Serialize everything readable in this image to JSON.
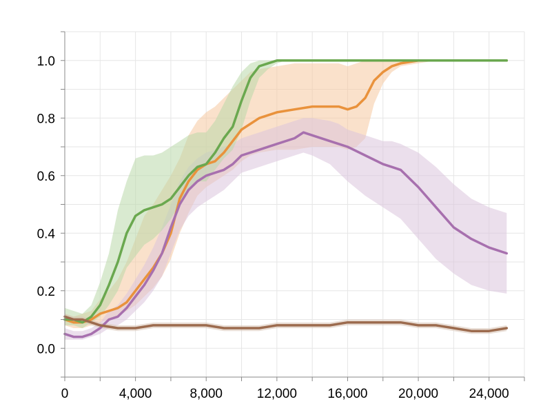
{
  "chart_data": {
    "type": "line",
    "title": "",
    "xlabel": "",
    "ylabel": "",
    "xlim": [
      0,
      26000
    ],
    "ylim": [
      -0.1,
      1.1
    ],
    "grid": true,
    "x_ticks": [
      0,
      4000,
      8000,
      12000,
      16000,
      20000,
      24000
    ],
    "x_tick_labels": [
      "0",
      "4,000",
      "8,000",
      "12,000",
      "16,000",
      "20,000",
      "24,000"
    ],
    "y_ticks": [
      0.0,
      0.2,
      0.4,
      0.6,
      0.8,
      1.0
    ],
    "y_tick_labels": [
      "0.0",
      "0.2",
      "0.4",
      "0.6",
      "0.8",
      "1.0"
    ],
    "series": [
      {
        "color": "#e9923c",
        "band_color": "#f5c9a0",
        "x": [
          0,
          500,
          1000,
          1500,
          2000,
          2500,
          3000,
          3500,
          4000,
          4500,
          5000,
          5500,
          6000,
          6500,
          7000,
          7500,
          8000,
          8500,
          9000,
          9500,
          10000,
          10500,
          11000,
          12000,
          13000,
          14000,
          15000,
          15500,
          16000,
          16500,
          17000,
          17500,
          18000,
          18500,
          19000,
          20000,
          21000,
          22000,
          23000,
          24000,
          25000
        ],
        "y": [
          0.1,
          0.09,
          0.09,
          0.1,
          0.12,
          0.13,
          0.14,
          0.16,
          0.2,
          0.24,
          0.28,
          0.33,
          0.4,
          0.52,
          0.58,
          0.62,
          0.64,
          0.65,
          0.68,
          0.72,
          0.76,
          0.78,
          0.8,
          0.82,
          0.83,
          0.84,
          0.84,
          0.84,
          0.83,
          0.84,
          0.87,
          0.93,
          0.96,
          0.98,
          0.99,
          1.0,
          1.0,
          1.0,
          1.0,
          1.0,
          1.0
        ],
        "lower": [
          0.08,
          0.07,
          0.07,
          0.08,
          0.09,
          0.1,
          0.11,
          0.13,
          0.15,
          0.18,
          0.21,
          0.25,
          0.31,
          0.4,
          0.47,
          0.53,
          0.56,
          0.58,
          0.6,
          0.62,
          0.65,
          0.67,
          0.68,
          0.69,
          0.69,
          0.7,
          0.7,
          0.7,
          0.69,
          0.7,
          0.73,
          0.85,
          0.92,
          0.96,
          0.98,
          0.99,
          1.0,
          1.0,
          1.0,
          1.0,
          1.0
        ],
        "upper": [
          0.12,
          0.11,
          0.12,
          0.13,
          0.17,
          0.2,
          0.24,
          0.3,
          0.38,
          0.46,
          0.5,
          0.55,
          0.6,
          0.66,
          0.74,
          0.79,
          0.82,
          0.84,
          0.87,
          0.9,
          0.93,
          0.96,
          0.97,
          0.98,
          0.99,
          0.99,
          0.99,
          0.99,
          0.98,
          0.99,
          1.0,
          1.0,
          1.0,
          1.0,
          1.0,
          1.0,
          1.0,
          1.0,
          1.0,
          1.0,
          1.0
        ]
      },
      {
        "color": "#6aa84f",
        "band_color": "#b9d8a9",
        "x": [
          0,
          500,
          1000,
          1500,
          2000,
          2500,
          3000,
          3500,
          4000,
          4500,
          5000,
          5500,
          6000,
          6500,
          7000,
          7500,
          8000,
          8500,
          9000,
          9500,
          10000,
          10500,
          11000,
          11500,
          12000,
          12500,
          13000,
          14000,
          16000,
          20000,
          25000
        ],
        "y": [
          0.1,
          0.1,
          0.09,
          0.11,
          0.15,
          0.22,
          0.3,
          0.4,
          0.46,
          0.48,
          0.49,
          0.5,
          0.52,
          0.56,
          0.6,
          0.63,
          0.64,
          0.68,
          0.73,
          0.77,
          0.86,
          0.94,
          0.98,
          0.99,
          1.0,
          1.0,
          1.0,
          1.0,
          1.0,
          1.0,
          1.0
        ],
        "lower": [
          0.08,
          0.08,
          0.07,
          0.09,
          0.11,
          0.15,
          0.2,
          0.28,
          0.32,
          0.36,
          0.38,
          0.41,
          0.45,
          0.5,
          0.55,
          0.58,
          0.58,
          0.62,
          0.66,
          0.69,
          0.76,
          0.86,
          0.94,
          0.97,
          0.99,
          1.0,
          1.0,
          1.0,
          1.0,
          1.0,
          1.0
        ],
        "upper": [
          0.14,
          0.13,
          0.12,
          0.15,
          0.23,
          0.33,
          0.48,
          0.58,
          0.66,
          0.67,
          0.67,
          0.68,
          0.7,
          0.72,
          0.74,
          0.75,
          0.75,
          0.79,
          0.85,
          0.91,
          0.96,
          0.99,
          1.0,
          1.0,
          1.0,
          1.0,
          1.0,
          1.0,
          1.0,
          1.0,
          1.0
        ]
      },
      {
        "color": "#a770ae",
        "band_color": "#dbc4dc",
        "x": [
          0,
          500,
          1000,
          1500,
          2000,
          2500,
          3000,
          3500,
          4000,
          4500,
          5000,
          5500,
          6000,
          6500,
          7000,
          7500,
          8000,
          8500,
          9000,
          9500,
          10000,
          11000,
          12000,
          13000,
          13500,
          14000,
          15000,
          15500,
          16000,
          17000,
          18000,
          18500,
          19000,
          20000,
          21000,
          22000,
          23000,
          24000,
          25000
        ],
        "y": [
          0.05,
          0.04,
          0.04,
          0.05,
          0.07,
          0.1,
          0.11,
          0.14,
          0.18,
          0.22,
          0.27,
          0.33,
          0.42,
          0.5,
          0.55,
          0.58,
          0.6,
          0.61,
          0.62,
          0.64,
          0.67,
          0.69,
          0.71,
          0.73,
          0.75,
          0.74,
          0.72,
          0.71,
          0.7,
          0.67,
          0.64,
          0.63,
          0.62,
          0.56,
          0.49,
          0.42,
          0.38,
          0.35,
          0.33
        ],
        "lower": [
          0.03,
          0.03,
          0.03,
          0.04,
          0.05,
          0.07,
          0.08,
          0.1,
          0.13,
          0.16,
          0.2,
          0.25,
          0.33,
          0.41,
          0.46,
          0.49,
          0.51,
          0.53,
          0.55,
          0.58,
          0.61,
          0.63,
          0.65,
          0.67,
          0.68,
          0.67,
          0.64,
          0.61,
          0.58,
          0.53,
          0.49,
          0.47,
          0.45,
          0.38,
          0.31,
          0.26,
          0.22,
          0.2,
          0.19
        ],
        "upper": [
          0.07,
          0.06,
          0.06,
          0.07,
          0.09,
          0.13,
          0.15,
          0.19,
          0.24,
          0.29,
          0.35,
          0.42,
          0.5,
          0.58,
          0.63,
          0.66,
          0.68,
          0.69,
          0.7,
          0.71,
          0.73,
          0.75,
          0.77,
          0.79,
          0.8,
          0.8,
          0.79,
          0.78,
          0.76,
          0.74,
          0.72,
          0.72,
          0.71,
          0.68,
          0.63,
          0.57,
          0.52,
          0.49,
          0.47
        ]
      },
      {
        "color": "#9c6b4e",
        "band_color": "#d7c2b5",
        "x": [
          0,
          500,
          1000,
          2000,
          3000,
          4000,
          5000,
          6000,
          7000,
          8000,
          9000,
          10000,
          11000,
          12000,
          13000,
          14000,
          15000,
          16000,
          17000,
          18000,
          19000,
          20000,
          21000,
          22000,
          23000,
          24000,
          25000
        ],
        "y": [
          0.11,
          0.1,
          0.1,
          0.08,
          0.07,
          0.07,
          0.08,
          0.08,
          0.08,
          0.08,
          0.07,
          0.07,
          0.07,
          0.08,
          0.08,
          0.08,
          0.08,
          0.09,
          0.09,
          0.09,
          0.09,
          0.08,
          0.08,
          0.07,
          0.06,
          0.06,
          0.07
        ],
        "lower": [
          0.1,
          0.09,
          0.09,
          0.07,
          0.06,
          0.06,
          0.07,
          0.07,
          0.07,
          0.07,
          0.06,
          0.06,
          0.06,
          0.07,
          0.07,
          0.07,
          0.07,
          0.08,
          0.08,
          0.08,
          0.08,
          0.07,
          0.07,
          0.06,
          0.05,
          0.05,
          0.06
        ],
        "upper": [
          0.12,
          0.11,
          0.11,
          0.09,
          0.08,
          0.08,
          0.09,
          0.09,
          0.09,
          0.09,
          0.08,
          0.08,
          0.08,
          0.09,
          0.09,
          0.09,
          0.09,
          0.1,
          0.1,
          0.1,
          0.1,
          0.09,
          0.09,
          0.08,
          0.07,
          0.07,
          0.08
        ]
      }
    ]
  }
}
